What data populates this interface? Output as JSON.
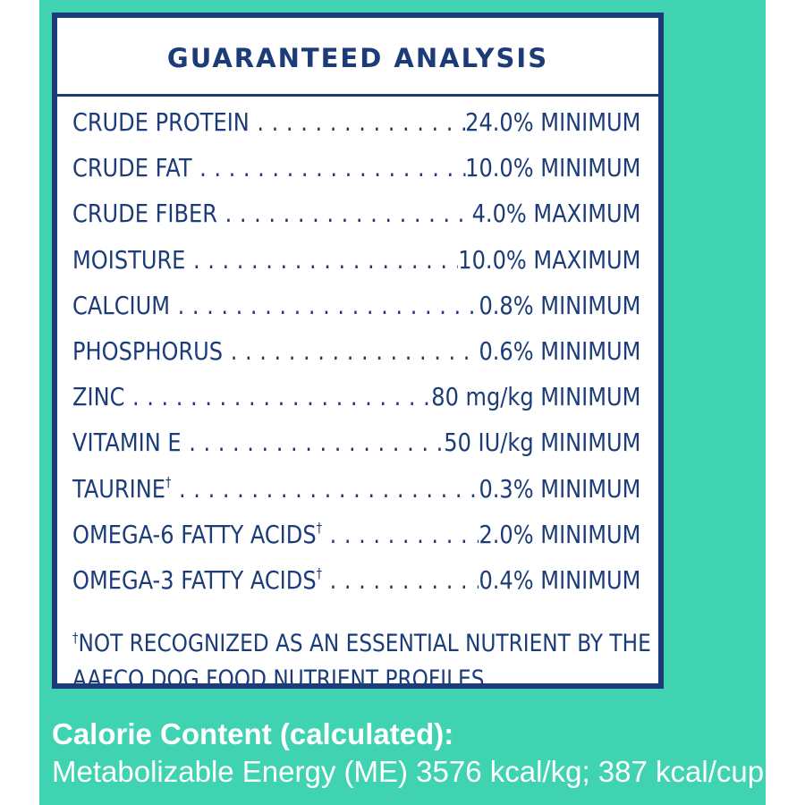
{
  "colors": {
    "background": "#3fd3b1",
    "label_blue": "#1b3c78",
    "label_bg": "#ffffff"
  },
  "title": "GUARANTEED ANALYSIS",
  "rows": [
    {
      "name": "CRUDE PROTEIN",
      "mark": "",
      "value": "24.0% MINIMUM"
    },
    {
      "name": "CRUDE FAT",
      "mark": "",
      "value": "10.0% MINIMUM"
    },
    {
      "name": "CRUDE FIBER",
      "mark": "",
      "value": "4.0% MAXIMUM"
    },
    {
      "name": "MOISTURE",
      "mark": "",
      "value": "10.0% MAXIMUM"
    },
    {
      "name": "CALCIUM",
      "mark": "",
      "value": "0.8% MINIMUM"
    },
    {
      "name": "PHOSPHORUS",
      "mark": "",
      "value": "0.6% MINIMUM"
    },
    {
      "name": "ZINC",
      "mark": "",
      "value": "80 mg/kg MINIMUM"
    },
    {
      "name": "VITAMIN E",
      "mark": "",
      "value": "50 IU/kg MINIMUM"
    },
    {
      "name": "TAURINE",
      "mark": "†",
      "value": "0.3% MINIMUM"
    },
    {
      "name": "OMEGA-6 FATTY ACIDS",
      "mark": "†",
      "value": "2.0% MINIMUM"
    },
    {
      "name": "OMEGA-3 FATTY ACIDS",
      "mark": "†",
      "value": "0.4% MINIMUM"
    }
  ],
  "footnote": {
    "mark": "†",
    "text": "NOT RECOGNIZED AS AN ESSENTIAL NUTRIENT BY THE  AAFCO DOG FOOD NUTRIENT PROFILES."
  },
  "calorie": {
    "heading": "Calorie Content (calculated):",
    "text": "Metabolizable Energy (ME) 3576 kcal/kg; 387 kcal/cup"
  }
}
